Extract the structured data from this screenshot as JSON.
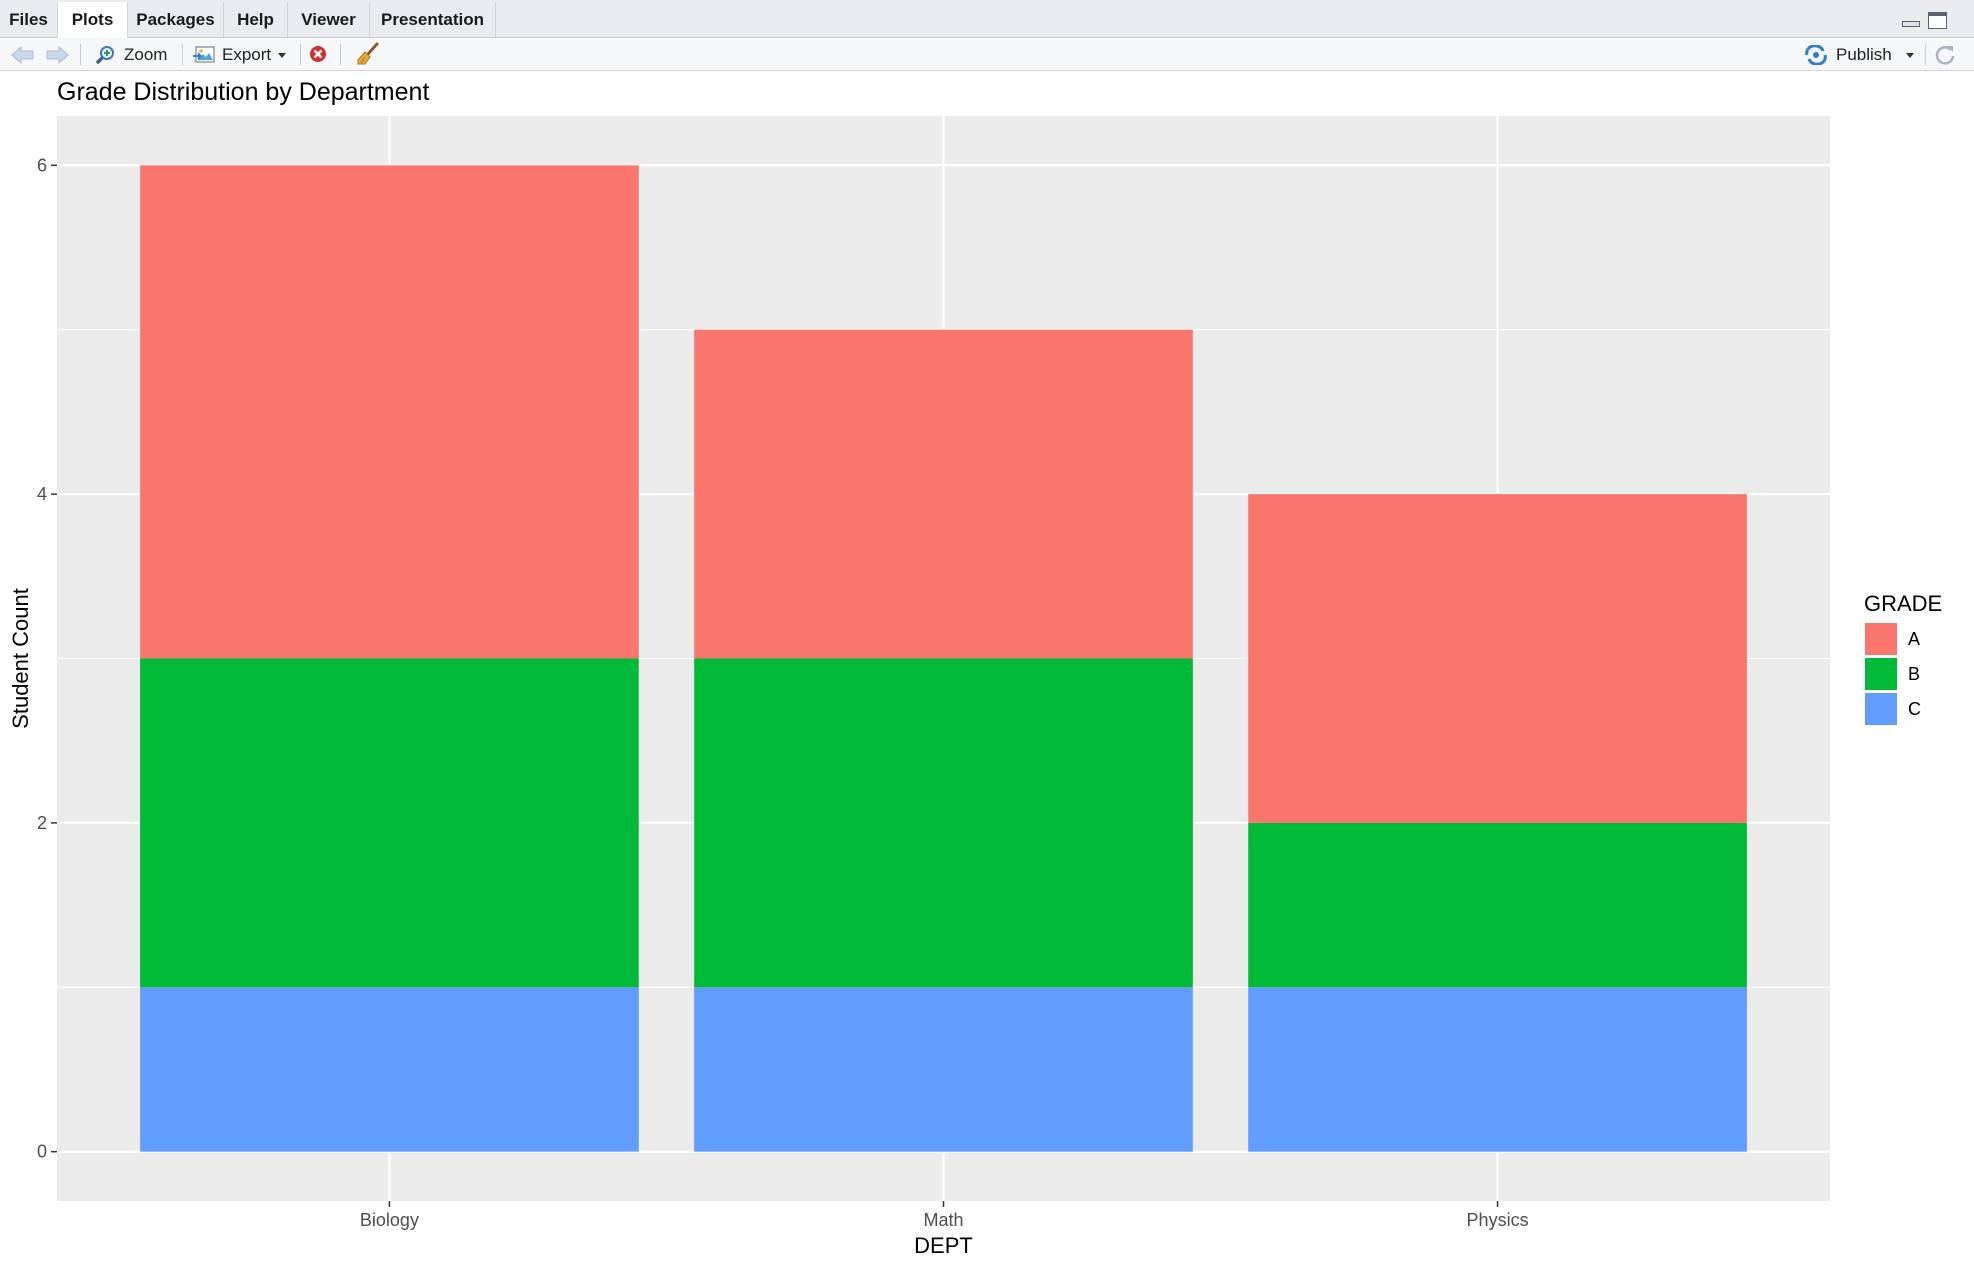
{
  "tabs": [
    {
      "label": "Files",
      "active": false
    },
    {
      "label": "Plots",
      "active": true
    },
    {
      "label": "Packages",
      "active": false
    },
    {
      "label": "Help",
      "active": false
    },
    {
      "label": "Viewer",
      "active": false
    },
    {
      "label": "Presentation",
      "active": false
    }
  ],
  "toolbar": {
    "back_icon": "arrow-left-icon",
    "forward_icon": "arrow-right-icon",
    "zoom_label": "Zoom",
    "export_label": "Export",
    "publish_label": "Publish",
    "remove_icon": "remove-plot-icon",
    "clear_icon": "broom-icon",
    "refresh_icon": "refresh-icon"
  },
  "chart_data": {
    "type": "bar",
    "stacked": true,
    "title": "Grade Distribution by Department",
    "xlabel": "DEPT",
    "ylabel": "Student Count",
    "categories": [
      "Biology",
      "Math",
      "Physics"
    ],
    "series": [
      {
        "name": "A",
        "values": [
          3,
          2,
          2
        ],
        "color": "#F8766D"
      },
      {
        "name": "B",
        "values": [
          2,
          2,
          1
        ],
        "color": "#00BA38"
      },
      {
        "name": "C",
        "values": [
          1,
          1,
          1
        ],
        "color": "#619CFF"
      }
    ],
    "stack_order_bottom_to_top": [
      "C",
      "B",
      "A"
    ],
    "ylim": [
      -0.3,
      6.3
    ],
    "yticks": [
      0,
      2,
      4,
      6
    ],
    "legend": {
      "title": "GRADE",
      "placement": "right"
    },
    "grid": true,
    "panel_background": "#EBEBEB"
  }
}
